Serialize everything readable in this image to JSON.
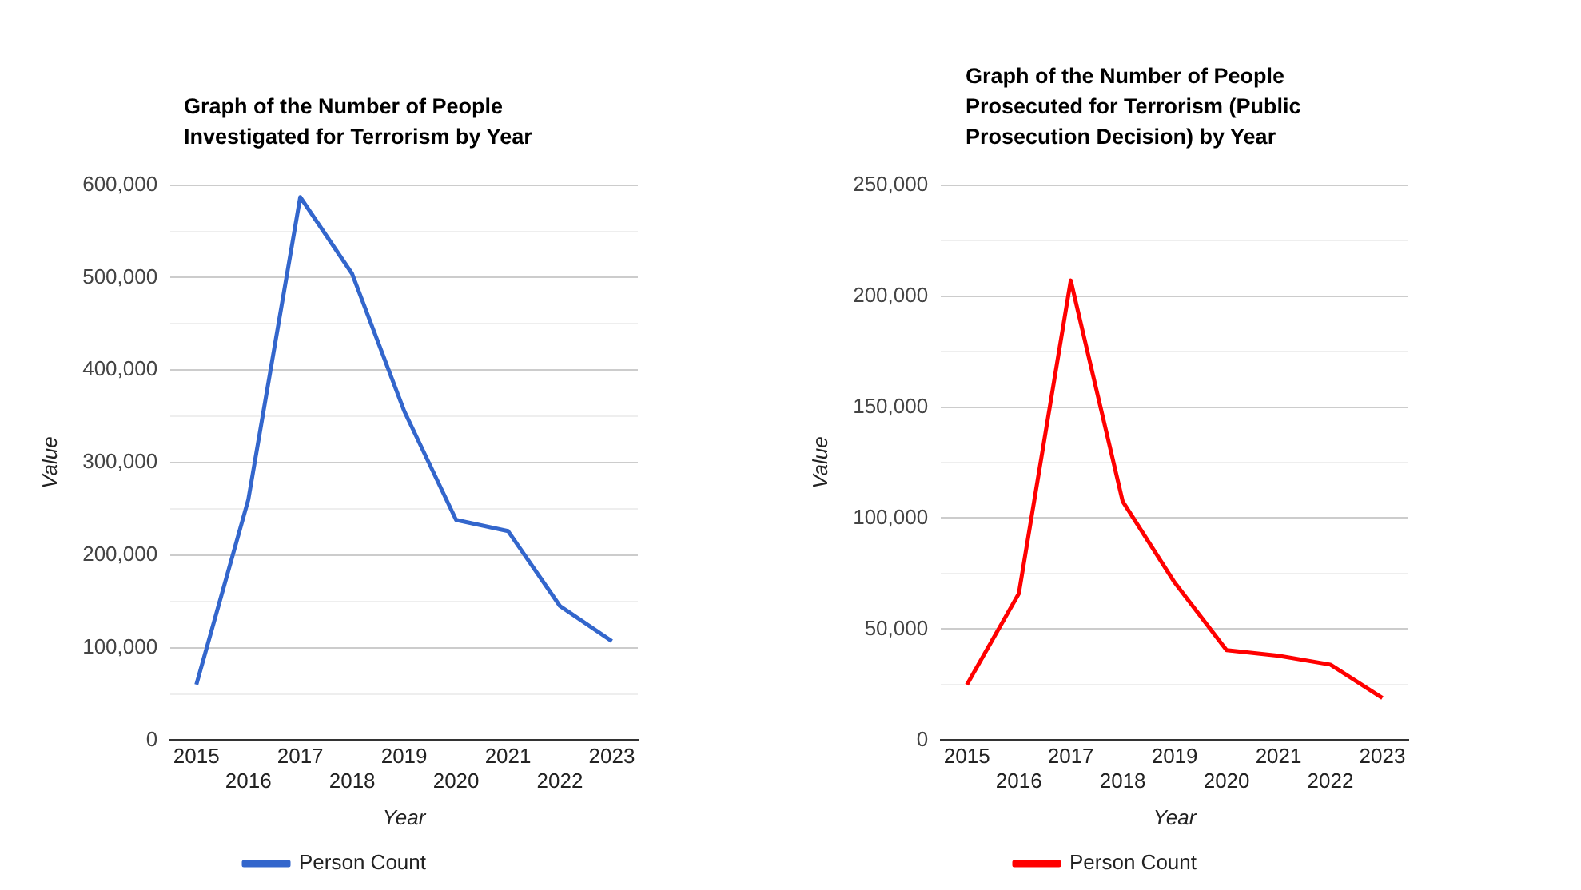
{
  "chart_data": [
    {
      "type": "line",
      "title": "Graph of the Number of People Investigated for Terrorism by Year",
      "xlabel": "Year",
      "ylabel": "Value",
      "categories": [
        "2015",
        "2016",
        "2017",
        "2018",
        "2019",
        "2020",
        "2021",
        "2022",
        "2023"
      ],
      "series": [
        {
          "name": "Person Count",
          "color": "#3366cc",
          "values": [
            60000,
            260000,
            587000,
            504000,
            356000,
            238000,
            226000,
            145000,
            107000
          ]
        }
      ],
      "ylim": [
        0,
        600000
      ],
      "yticks": [
        {
          "value": 0,
          "label": "0"
        },
        {
          "value": 50000,
          "label": null
        },
        {
          "value": 100000,
          "label": "100,000"
        },
        {
          "value": 150000,
          "label": null
        },
        {
          "value": 200000,
          "label": "200,000"
        },
        {
          "value": 250000,
          "label": null
        },
        {
          "value": 300000,
          "label": "300,000"
        },
        {
          "value": 350000,
          "label": null
        },
        {
          "value": 400000,
          "label": "400,000"
        },
        {
          "value": 450000,
          "label": null
        },
        {
          "value": 500000,
          "label": "500,000"
        },
        {
          "value": 550000,
          "label": null
        },
        {
          "value": 600000,
          "label": "600,000"
        }
      ],
      "grid": "y",
      "legend": "bottom",
      "marker": "none"
    },
    {
      "type": "line",
      "title": "Graph of the Number of People Prosecuted for Terrorism (Public Prosecution Decision) by Year",
      "xlabel": "Year",
      "ylabel": "Value",
      "categories": [
        "2015",
        "2016",
        "2017",
        "2018",
        "2019",
        "2020",
        "2021",
        "2022",
        "2023"
      ],
      "series": [
        {
          "name": "Person Count",
          "color": "#ff0000",
          "values": [
            25000,
            66000,
            207000,
            107500,
            71000,
            40500,
            38000,
            34000,
            19000
          ]
        }
      ],
      "ylim": [
        0,
        250000
      ],
      "yticks": [
        {
          "value": 0,
          "label": "0"
        },
        {
          "value": 25000,
          "label": null
        },
        {
          "value": 50000,
          "label": "50,000"
        },
        {
          "value": 75000,
          "label": null
        },
        {
          "value": 100000,
          "label": "100,000"
        },
        {
          "value": 125000,
          "label": null
        },
        {
          "value": 150000,
          "label": "150,000"
        },
        {
          "value": 175000,
          "label": null
        },
        {
          "value": 200000,
          "label": "200,000"
        },
        {
          "value": 225000,
          "label": null
        },
        {
          "value": 250000,
          "label": "250,000"
        }
      ],
      "grid": "y",
      "legend": "bottom",
      "marker": "none"
    }
  ]
}
